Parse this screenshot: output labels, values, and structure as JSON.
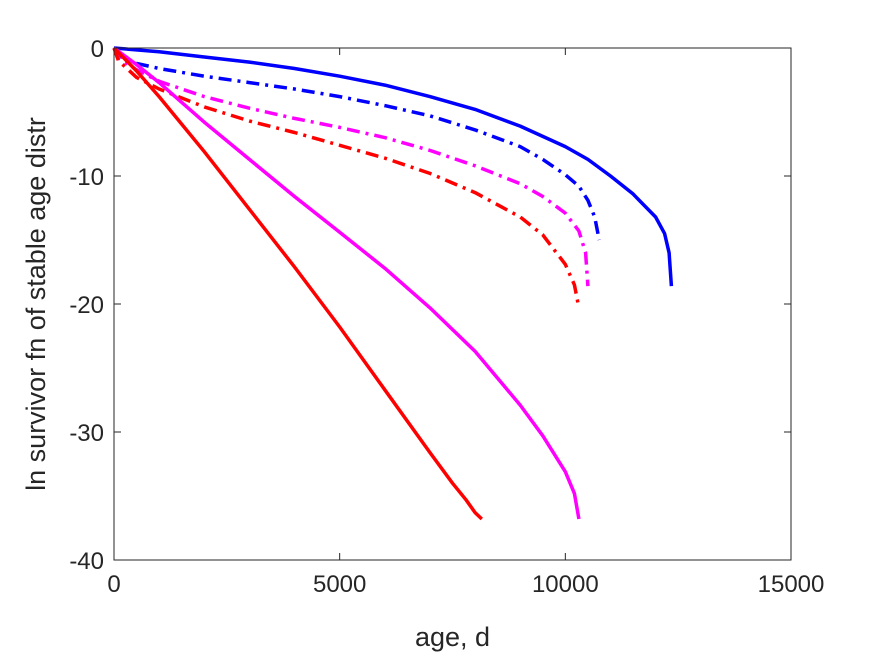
{
  "chart_data": {
    "type": "line",
    "title": "",
    "xlabel": "age, d",
    "ylabel": "ln survivor fn of stable age distr",
    "xlim": [
      0,
      15000
    ],
    "ylim": [
      -40,
      0
    ],
    "xticks": [
      0,
      5000,
      10000,
      15000
    ],
    "yticks": [
      0,
      -10,
      -20,
      -30,
      -40
    ],
    "xtick_labels": [
      "0",
      "5000",
      "10000",
      "15000"
    ],
    "ytick_labels": [
      "0",
      "-10",
      "-20",
      "-30",
      "-40"
    ],
    "grid": false,
    "series": [
      {
        "color": "#0000ff",
        "style": "solid",
        "x": [
          0,
          1000,
          2000,
          3000,
          4000,
          5000,
          6000,
          7000,
          8000,
          9000,
          10000,
          10500,
          11000,
          11500,
          12000,
          12200,
          12300,
          12350
        ],
        "y": [
          0,
          -0.3,
          -0.7,
          -1.1,
          -1.6,
          -2.2,
          -2.9,
          -3.8,
          -4.8,
          -6.1,
          -7.7,
          -8.7,
          -10.0,
          -11.4,
          -13.2,
          -14.5,
          -16.0,
          -18.6
        ]
      },
      {
        "color": "#0000ff",
        "style": "dashdot",
        "x": [
          0,
          100,
          500,
          1000,
          2000,
          3000,
          4000,
          5000,
          6000,
          7000,
          8000,
          9000,
          9500,
          10000,
          10300,
          10500,
          10650,
          10750
        ],
        "y": [
          0,
          -0.6,
          -1.2,
          -1.6,
          -2.2,
          -2.7,
          -3.2,
          -3.8,
          -4.5,
          -5.3,
          -6.4,
          -7.7,
          -8.7,
          -9.9,
          -10.8,
          -11.9,
          -13.2,
          -15.0
        ]
      },
      {
        "color": "#ff00ff",
        "style": "dashdot",
        "x": [
          0,
          100,
          500,
          1000,
          2000,
          3000,
          4000,
          5000,
          6000,
          7000,
          8000,
          9000,
          9500,
          10000,
          10300,
          10450,
          10500
        ],
        "y": [
          0,
          -0.8,
          -1.7,
          -2.6,
          -3.8,
          -4.7,
          -5.5,
          -6.2,
          -7.0,
          -8.0,
          -9.2,
          -10.6,
          -11.6,
          -12.9,
          -14.3,
          -16.0,
          -18.6
        ]
      },
      {
        "color": "#ff0000",
        "style": "dashdot",
        "x": [
          0,
          100,
          500,
          1000,
          2000,
          3000,
          4000,
          5000,
          6000,
          7000,
          8000,
          9000,
          9500,
          10000,
          10200,
          10300
        ],
        "y": [
          0,
          -1.0,
          -2.3,
          -3.2,
          -4.6,
          -5.7,
          -6.6,
          -7.6,
          -8.6,
          -9.8,
          -11.3,
          -13.2,
          -14.6,
          -16.9,
          -18.5,
          -20.3
        ]
      },
      {
        "color": "#ff00ff",
        "style": "solid",
        "x": [
          0,
          500,
          1000,
          2000,
          3000,
          4000,
          5000,
          6000,
          7000,
          8000,
          9000,
          9500,
          10000,
          10200,
          10300
        ],
        "y": [
          0,
          -1.3,
          -2.7,
          -5.8,
          -8.7,
          -11.6,
          -14.4,
          -17.2,
          -20.3,
          -23.7,
          -27.9,
          -30.3,
          -33.1,
          -34.8,
          -36.8
        ]
      },
      {
        "color": "#ff0000",
        "style": "solid",
        "x": [
          0,
          500,
          1000,
          2000,
          3000,
          4000,
          5000,
          6000,
          7000,
          7500,
          7800,
          8000,
          8150
        ],
        "y": [
          0,
          -1.8,
          -3.8,
          -8.1,
          -12.6,
          -17.1,
          -21.8,
          -26.7,
          -31.6,
          -34.0,
          -35.3,
          -36.3,
          -36.8
        ]
      }
    ]
  }
}
